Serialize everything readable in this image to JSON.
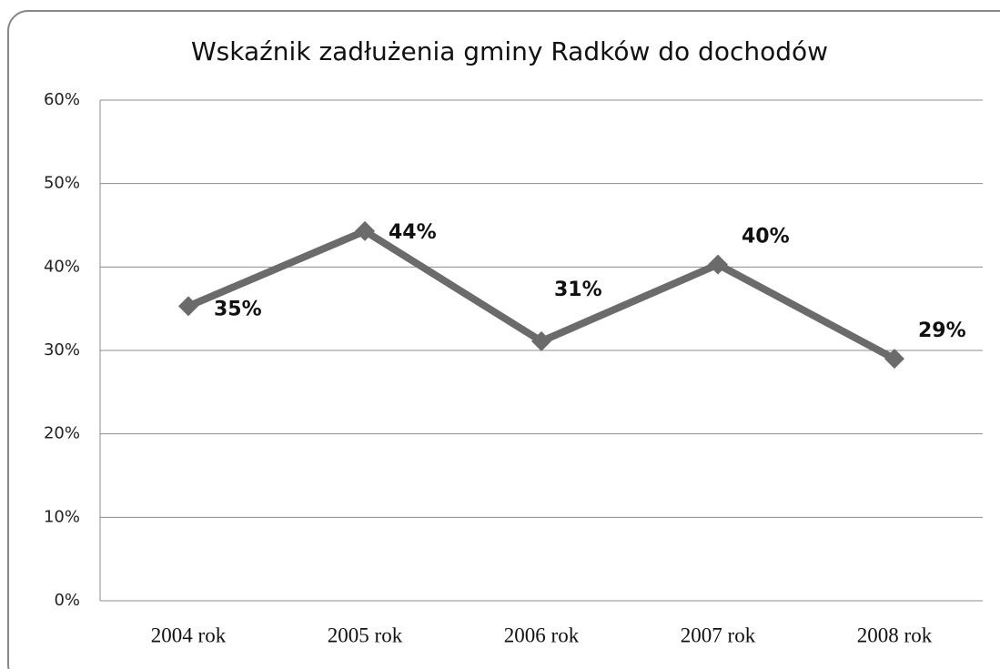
{
  "chart_data": {
    "type": "line",
    "title": "Wskaźnik zadłużenia gminy Radków do dochodów",
    "categories": [
      "2004 rok",
      "2005 rok",
      "2006 rok",
      "2007 rok",
      "2008 rok"
    ],
    "series": [
      {
        "name": "Wskaźnik zadłużenia",
        "color": "#6b6b6b",
        "values": [
          35.3,
          44.3,
          31.1,
          40.3,
          29.0
        ],
        "value_labels": [
          "35%",
          "44%",
          "31%",
          "40%",
          "29%"
        ]
      }
    ],
    "ylim": [
      0,
      60
    ],
    "yticks": [
      {
        "value": 0,
        "label": "0%"
      },
      {
        "value": 10,
        "label": "10%"
      },
      {
        "value": 20,
        "label": "20%"
      },
      {
        "value": 30,
        "label": "30%"
      },
      {
        "value": 40,
        "label": "40%"
      },
      {
        "value": 50,
        "label": "50%"
      },
      {
        "value": 60,
        "label": "60%"
      }
    ],
    "grid": true
  }
}
